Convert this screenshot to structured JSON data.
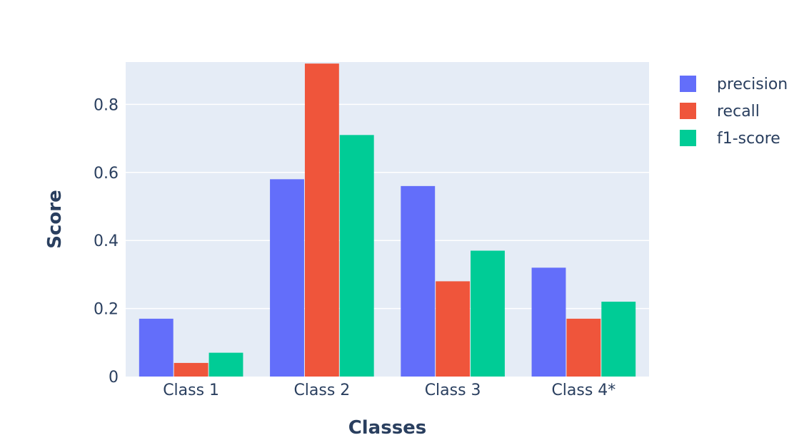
{
  "chart_data": {
    "type": "bar",
    "barmode": "group",
    "categories": [
      "Class 1",
      "Class 2",
      "Class 3",
      "Class 4*"
    ],
    "series": [
      {
        "name": "precision",
        "color": "#636efa",
        "values": [
          0.17,
          0.58,
          0.56,
          0.32
        ]
      },
      {
        "name": "recall",
        "color": "#ef553b",
        "values": [
          0.04,
          0.92,
          0.28,
          0.17
        ]
      },
      {
        "name": "f1-score",
        "color": "#00cc96",
        "values": [
          0.07,
          0.71,
          0.37,
          0.22
        ]
      }
    ],
    "xlabel": "Classes",
    "ylabel": "Score",
    "ylim": [
      0,
      0.9245
    ],
    "yticks": [
      0,
      0.2,
      0.4,
      0.6,
      0.8
    ],
    "ytick_labels": [
      "0",
      "0.2",
      "0.4",
      "0.6",
      "0.8"
    ],
    "grid": true,
    "plot_background": "#e5ecf6",
    "legend_position": "top-right"
  }
}
